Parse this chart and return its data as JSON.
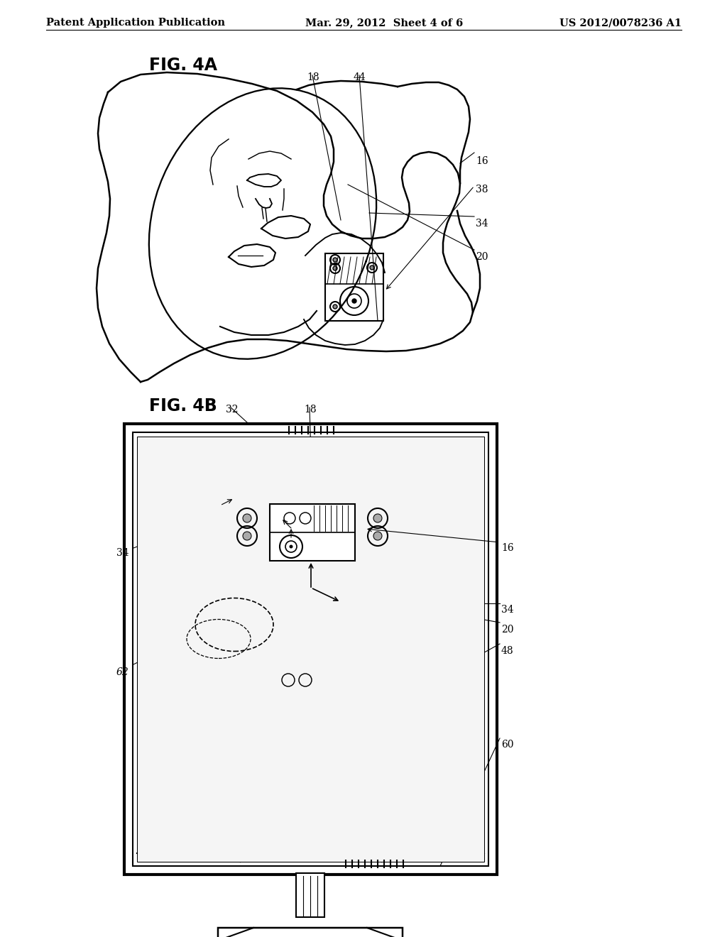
{
  "background_color": "#ffffff",
  "header_left": "Patent Application Publication",
  "header_center": "Mar. 29, 2012  Sheet 4 of 6",
  "header_right": "US 2012/0078236 A1",
  "header_font_size": 10.5,
  "fig4a_label": "FIG. 4A",
  "fig4b_label": "FIG. 4B",
  "fig_label_font_size": 17,
  "line_color": "#000000",
  "line_width": 1.5,
  "annotation_font_size": 10
}
